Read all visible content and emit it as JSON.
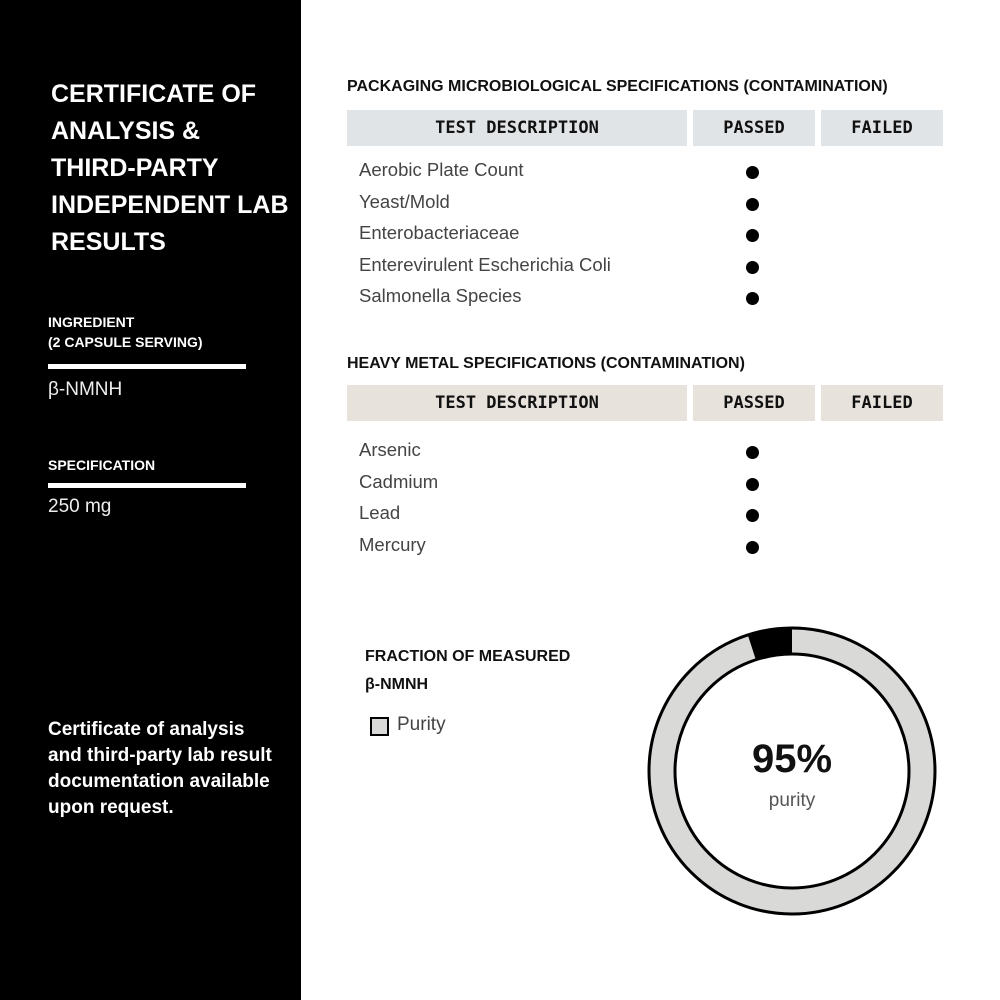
{
  "sidebar": {
    "title": "CERTIFICATE OF ANALYSIS & THIRD-PARTY INDEPENDENT LAB RESULTS",
    "ingredient_label_1": "INGREDIENT",
    "ingredient_label_2": "(2 CAPSULE SERVING)",
    "ingredient": "β-NMNH",
    "spec_label": "SPECIFICATION",
    "spec": "250 mg",
    "note": "Certificate of analysis and third-party lab result documentation available upon request."
  },
  "micro": {
    "title": "PACKAGING MICROBIOLOGICAL SPECIFICATIONS (CONTAMINATION)",
    "header_color": "#e1e4e7",
    "headers": [
      "TEST DESCRIPTION",
      "PASSED",
      "FAILED"
    ],
    "rows": [
      {
        "name": "Aerobic Plate Count",
        "result": "passed"
      },
      {
        "name": "Yeast/Mold",
        "result": "passed"
      },
      {
        "name": "Enterobacteriaceae",
        "result": "passed"
      },
      {
        "name": "Enterevirulent Escherichia Coli",
        "result": "passed"
      },
      {
        "name": "Salmonella Species",
        "result": "passed"
      }
    ]
  },
  "metal": {
    "title": "HEAVY METAL SPECIFICATIONS (CONTAMINATION)",
    "header_color": "#e8e2dc",
    "headers": [
      "TEST DESCRIPTION",
      "PASSED",
      "FAILED"
    ],
    "rows": [
      {
        "name": "Arsenic",
        "result": "passed"
      },
      {
        "name": "Cadmium",
        "result": "passed"
      },
      {
        "name": "Lead",
        "result": "passed"
      },
      {
        "name": "Mercury",
        "result": "passed"
      }
    ]
  },
  "purity": {
    "title_1": "FRACTION OF MEASURED",
    "title_2": "β-NMNH",
    "legend": "Purity",
    "value_text": "95%",
    "value_label": "purity",
    "value": 95,
    "ring_color": "#d9dad8",
    "rest_color": "#000000"
  }
}
